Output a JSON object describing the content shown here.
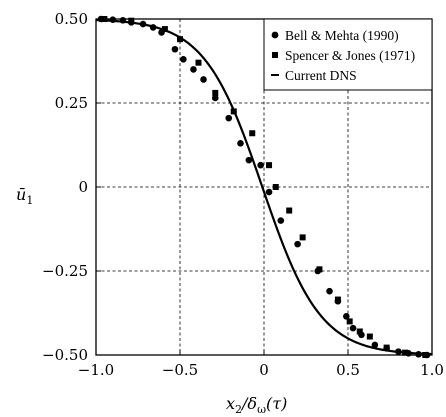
{
  "chart_data": {
    "type": "scatter",
    "xlabel": {
      "base": "x",
      "sub": "2",
      "sep": "/δ",
      "sub2": "ω",
      "tail": "(τ)"
    },
    "ylabel": {
      "base": "ū",
      "sub": "1"
    },
    "xlim": [
      -1.0,
      1.0
    ],
    "ylim": [
      -0.5,
      0.5
    ],
    "x_ticks": [
      -1.0,
      -0.5,
      0,
      0.5,
      1.0
    ],
    "x_tick_labels": [
      "−1.0",
      "−0.5",
      "0",
      "0.5",
      "1.0"
    ],
    "y_ticks": [
      -0.5,
      -0.25,
      0,
      0.25,
      0.5
    ],
    "y_tick_labels": [
      "−0.50",
      "−0.25",
      "0",
      "0.25",
      "0.50"
    ],
    "grid": "dashed",
    "legend_position": "top-right",
    "series": [
      {
        "name": "Bell & Mehta (1990)",
        "marker": "circle",
        "points": [
          [
            -0.97,
            0.5
          ],
          [
            -0.9,
            0.498
          ],
          [
            -0.84,
            0.496
          ],
          [
            -0.79,
            0.49
          ],
          [
            -0.72,
            0.485
          ],
          [
            -0.66,
            0.475
          ],
          [
            -0.61,
            0.46
          ],
          [
            -0.53,
            0.41
          ],
          [
            -0.48,
            0.38
          ],
          [
            -0.42,
            0.35
          ],
          [
            -0.36,
            0.32
          ],
          [
            -0.29,
            0.265
          ],
          [
            -0.21,
            0.205
          ],
          [
            -0.14,
            0.13
          ],
          [
            -0.09,
            0.08
          ],
          [
            -0.02,
            0.065
          ],
          [
            0.03,
            -0.015
          ],
          [
            0.1,
            -0.1
          ],
          [
            0.2,
            -0.17
          ],
          [
            0.32,
            -0.25
          ],
          [
            0.39,
            -0.31
          ],
          [
            0.44,
            -0.34
          ],
          [
            0.49,
            -0.385
          ],
          [
            0.53,
            -0.42
          ],
          [
            0.58,
            -0.44
          ],
          [
            0.66,
            -0.47
          ],
          [
            0.73,
            -0.48
          ],
          [
            0.8,
            -0.49
          ],
          [
            0.86,
            -0.495
          ],
          [
            0.92,
            -0.498
          ],
          [
            0.97,
            -0.5
          ]
        ]
      },
      {
        "name": "Spencer & Jones (1971)",
        "marker": "square",
        "points": [
          [
            -0.95,
            0.5
          ],
          [
            -0.79,
            0.495
          ],
          [
            -0.59,
            0.47
          ],
          [
            -0.5,
            0.44
          ],
          [
            -0.39,
            0.37
          ],
          [
            -0.29,
            0.28
          ],
          [
            -0.18,
            0.225
          ],
          [
            -0.07,
            0.16
          ],
          [
            0.03,
            0.065
          ],
          [
            0.07,
            0.0
          ],
          [
            0.15,
            -0.07
          ],
          [
            0.23,
            -0.15
          ],
          [
            0.33,
            -0.245
          ],
          [
            0.44,
            -0.335
          ],
          [
            0.51,
            -0.4
          ],
          [
            0.57,
            -0.43
          ],
          [
            0.63,
            -0.445
          ],
          [
            0.73,
            -0.478
          ],
          [
            0.84,
            -0.493
          ],
          [
            0.96,
            -0.5
          ]
        ]
      },
      {
        "name": "Current DNS",
        "marker": "line",
        "curve": {
          "form": "0.5*tanh",
          "scale": -2.9,
          "center": -0.01
        }
      }
    ]
  }
}
